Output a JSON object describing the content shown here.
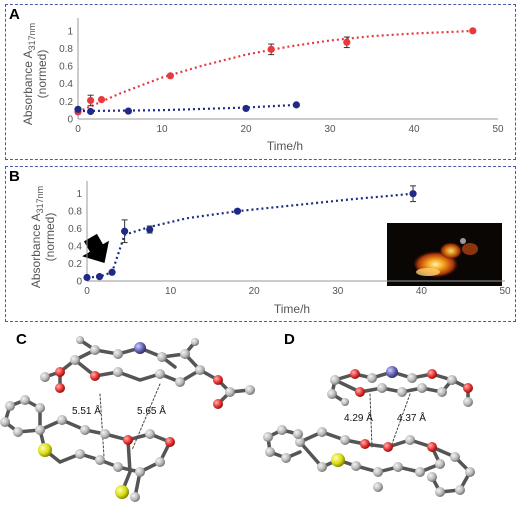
{
  "panels": {
    "a": "A",
    "b": "B",
    "c": "C",
    "d": "D"
  },
  "colors": {
    "red": "#e8393f",
    "navy": "#1f2a86",
    "axis_text": "#555555",
    "frame": "#4a5aa8"
  },
  "chart_data": [
    {
      "type": "scatter",
      "panel": "A",
      "xlabel": "Time/h",
      "ylabel_main": "Absorbance A",
      "ylabel_sub": "317nm",
      "ylabel_line2": "(normed)",
      "xlim": [
        0,
        50
      ],
      "ylim": [
        0,
        1.1
      ],
      "xticks": [
        "0",
        "10",
        "20",
        "30",
        "40",
        "50"
      ],
      "yticks": [
        "0",
        "0.2",
        "0.4",
        "0.6",
        "0.8",
        "1"
      ],
      "series": [
        {
          "color": "#e8393f",
          "x": [
            0,
            1.5,
            2.8,
            11,
            23,
            32,
            47
          ],
          "y": [
            0.08,
            0.21,
            0.22,
            0.49,
            0.79,
            0.87,
            1.0
          ],
          "err": [
            0.02,
            0.06,
            0,
            0,
            0.06,
            0.06,
            0
          ],
          "fit_x": [
            0,
            5,
            10,
            15,
            20,
            25,
            30,
            35,
            40,
            45,
            47
          ],
          "fit_y": [
            0.08,
            0.29,
            0.47,
            0.61,
            0.73,
            0.82,
            0.89,
            0.94,
            0.97,
            0.99,
            1.0
          ]
        },
        {
          "color": "#1f2a86",
          "x": [
            0,
            1.5,
            6,
            20,
            26
          ],
          "y": [
            0.11,
            0.085,
            0.09,
            0.12,
            0.16
          ],
          "err": [
            0,
            0,
            0,
            0,
            0
          ],
          "fit_x": [
            0,
            5,
            10,
            15,
            20,
            26
          ],
          "fit_y": [
            0.09,
            0.095,
            0.1,
            0.115,
            0.13,
            0.16
          ]
        }
      ]
    },
    {
      "type": "scatter",
      "panel": "B",
      "xlabel": "Time/h",
      "ylabel_main": "Absorbance A",
      "ylabel_sub": "317nm",
      "ylabel_line2": "(normed)",
      "xlim": [
        0,
        50
      ],
      "ylim": [
        0,
        1.1
      ],
      "xticks": [
        "0",
        "10",
        "20",
        "30",
        "40",
        "50"
      ],
      "yticks": [
        "0",
        "0.2",
        "0.4",
        "0.6",
        "0.8",
        "1"
      ],
      "series": [
        {
          "color": "#1f2a86",
          "x": [
            0,
            1.5,
            3,
            4.5,
            7.5,
            18,
            39
          ],
          "y": [
            0.04,
            0.05,
            0.1,
            0.57,
            0.59,
            0.8,
            1.0
          ],
          "err": [
            0,
            0,
            0,
            0.13,
            0.04,
            0,
            0.09
          ],
          "fit_x": [
            0,
            1.5,
            3,
            4.5,
            7.5,
            12,
            18,
            25,
            32,
            39
          ],
          "fit_y": [
            0.04,
            0.05,
            0.1,
            0.53,
            0.62,
            0.72,
            0.8,
            0.87,
            0.94,
            1.0
          ]
        }
      ],
      "arrow_at_x": 2.5,
      "inset": "photo"
    }
  ],
  "molecules": {
    "c": {
      "dist1": "5.51 Å",
      "dist2": "5.65 Å"
    },
    "d": {
      "dist1": "4.29 Å",
      "dist2": "4.37 Å"
    }
  }
}
